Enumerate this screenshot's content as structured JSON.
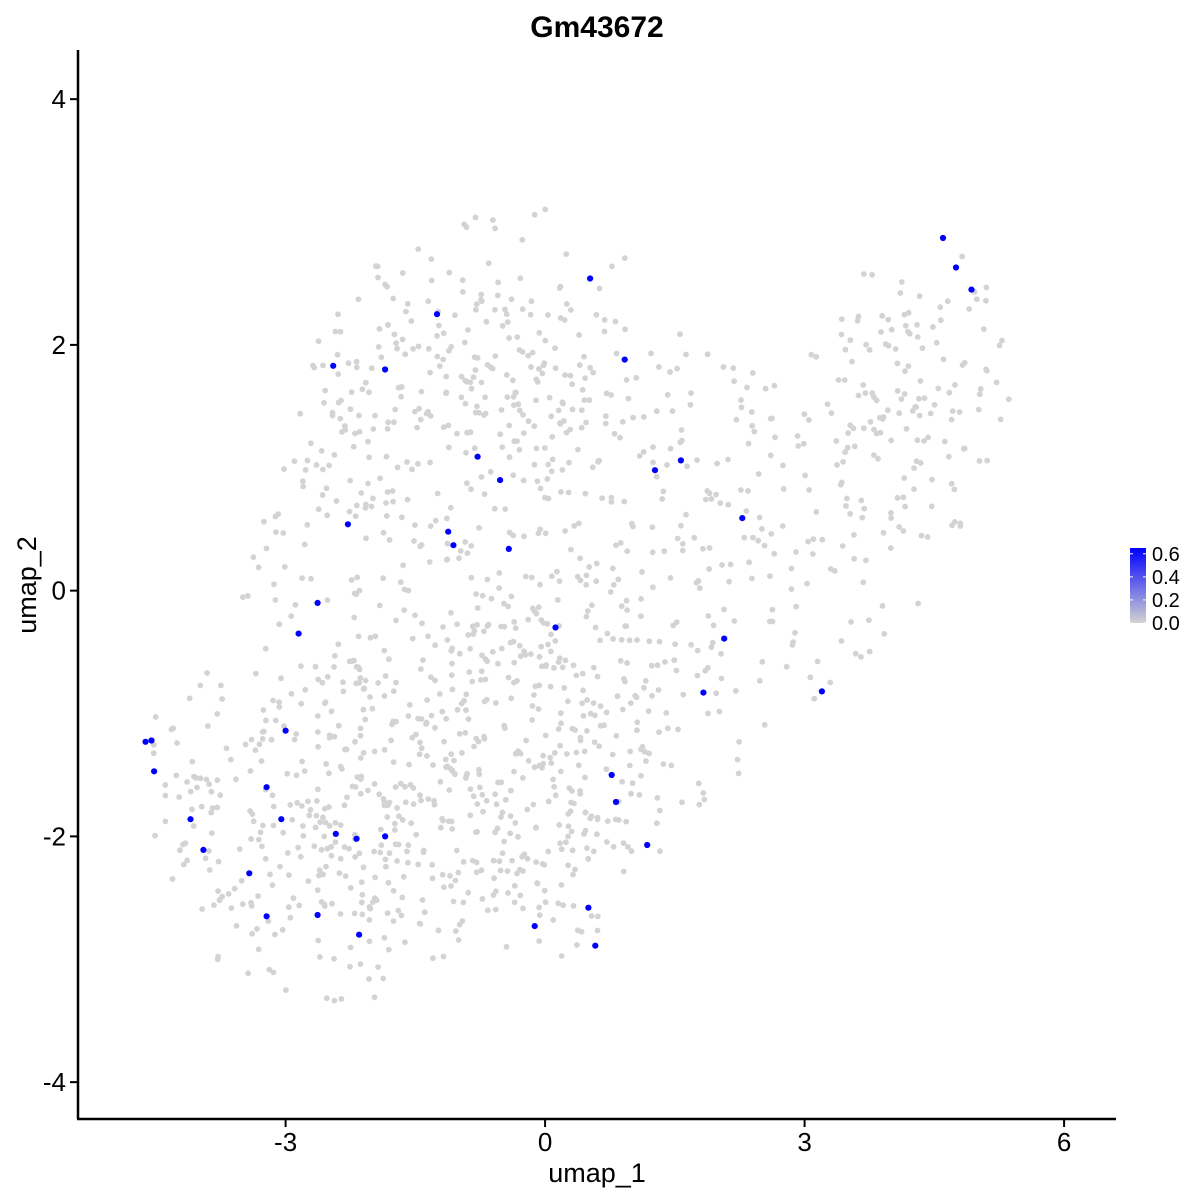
{
  "chart_data": {
    "type": "scatter",
    "title": "Gm43672",
    "xlabel": "umap_1",
    "ylabel": "umap_2",
    "xlim": [
      -5.4,
      6.6
    ],
    "ylim": [
      -4.3,
      4.4
    ],
    "xticks": [
      -3,
      0,
      3,
      6
    ],
    "xtick_labels": [
      "-3",
      "0",
      "3",
      "6"
    ],
    "yticks": [
      -4,
      -2,
      0,
      2,
      4
    ],
    "ytick_labels": [
      "-4",
      "-2",
      "0",
      "2",
      "4"
    ],
    "grid": false,
    "legend_position": "right",
    "color_scale": {
      "low_color": "#d3d3d3",
      "high_color": "#0000ff",
      "min": 0.0,
      "max": 0.65,
      "breaks": [
        0.0,
        0.2,
        0.4,
        0.6
      ],
      "break_labels": [
        "0.0",
        "0.2",
        "0.4",
        "0.6"
      ]
    },
    "background_point_color": "#d3d3d3",
    "background_point_count": 1500,
    "background_regions": [
      {
        "center": [
          -1.2,
          1.6
        ],
        "spread": [
          1.5,
          0.85
        ],
        "weight": 0.28
      },
      {
        "center": [
          -2.7,
          -1.9
        ],
        "spread": [
          1.2,
          0.7
        ],
        "weight": 0.22
      },
      {
        "center": [
          0.2,
          -1.6
        ],
        "spread": [
          1.2,
          0.9
        ],
        "weight": 0.18
      },
      {
        "center": [
          -0.8,
          -0.2
        ],
        "spread": [
          1.7,
          1.0
        ],
        "weight": 0.14
      },
      {
        "center": [
          4.3,
          1.5
        ],
        "spread": [
          0.85,
          0.75
        ],
        "weight": 0.1
      },
      {
        "center": [
          2.3,
          0.4
        ],
        "spread": [
          1.1,
          0.9
        ],
        "weight": 0.08
      }
    ],
    "expressing_points": [
      {
        "x": 4.6,
        "y": 2.87,
        "value": 0.65
      },
      {
        "x": 4.75,
        "y": 2.63,
        "value": 0.65
      },
      {
        "x": 4.93,
        "y": 2.45,
        "value": 0.65
      },
      {
        "x": 0.52,
        "y": 2.54,
        "value": 0.65
      },
      {
        "x": -1.25,
        "y": 2.25,
        "value": 0.65
      },
      {
        "x": -2.45,
        "y": 1.83,
        "value": 0.65
      },
      {
        "x": -1.85,
        "y": 1.8,
        "value": 0.65
      },
      {
        "x": 0.92,
        "y": 1.88,
        "value": 0.65
      },
      {
        "x": -0.78,
        "y": 1.09,
        "value": 0.65
      },
      {
        "x": -0.52,
        "y": 0.9,
        "value": 0.65
      },
      {
        "x": 1.27,
        "y": 0.98,
        "value": 0.65
      },
      {
        "x": 1.57,
        "y": 1.06,
        "value": 0.65
      },
      {
        "x": 2.28,
        "y": 0.59,
        "value": 0.65
      },
      {
        "x": -2.28,
        "y": 0.54,
        "value": 0.65
      },
      {
        "x": -1.12,
        "y": 0.48,
        "value": 0.65
      },
      {
        "x": -1.06,
        "y": 0.37,
        "value": 0.65
      },
      {
        "x": -0.42,
        "y": 0.34,
        "value": 0.65
      },
      {
        "x": -2.63,
        "y": -0.1,
        "value": 0.65
      },
      {
        "x": -2.85,
        "y": -0.35,
        "value": 0.65
      },
      {
        "x": 0.12,
        "y": -0.3,
        "value": 0.65
      },
      {
        "x": 2.07,
        "y": -0.39,
        "value": 0.65
      },
      {
        "x": 1.83,
        "y": -0.83,
        "value": 0.65
      },
      {
        "x": 3.2,
        "y": -0.82,
        "value": 0.65
      },
      {
        "x": -3.0,
        "y": -1.14,
        "value": 0.65
      },
      {
        "x": -4.62,
        "y": -1.23,
        "value": 0.65
      },
      {
        "x": -4.55,
        "y": -1.22,
        "value": 0.65
      },
      {
        "x": -4.52,
        "y": -1.47,
        "value": 0.65
      },
      {
        "x": -3.22,
        "y": -1.6,
        "value": 0.65
      },
      {
        "x": 0.77,
        "y": -1.5,
        "value": 0.65
      },
      {
        "x": 0.82,
        "y": -1.72,
        "value": 0.65
      },
      {
        "x": -4.1,
        "y": -1.86,
        "value": 0.65
      },
      {
        "x": -3.05,
        "y": -1.86,
        "value": 0.65
      },
      {
        "x": -3.95,
        "y": -2.11,
        "value": 0.65
      },
      {
        "x": -2.42,
        "y": -1.98,
        "value": 0.65
      },
      {
        "x": -2.18,
        "y": -2.02,
        "value": 0.65
      },
      {
        "x": -1.85,
        "y": -2.0,
        "value": 0.65
      },
      {
        "x": 1.18,
        "y": -2.07,
        "value": 0.65
      },
      {
        "x": -3.42,
        "y": -2.3,
        "value": 0.65
      },
      {
        "x": -3.22,
        "y": -2.65,
        "value": 0.65
      },
      {
        "x": -2.63,
        "y": -2.64,
        "value": 0.65
      },
      {
        "x": -2.15,
        "y": -2.8,
        "value": 0.65
      },
      {
        "x": -0.12,
        "y": -2.73,
        "value": 0.65
      },
      {
        "x": 0.5,
        "y": -2.58,
        "value": 0.65
      },
      {
        "x": 0.58,
        "y": -2.89,
        "value": 0.65
      }
    ]
  }
}
